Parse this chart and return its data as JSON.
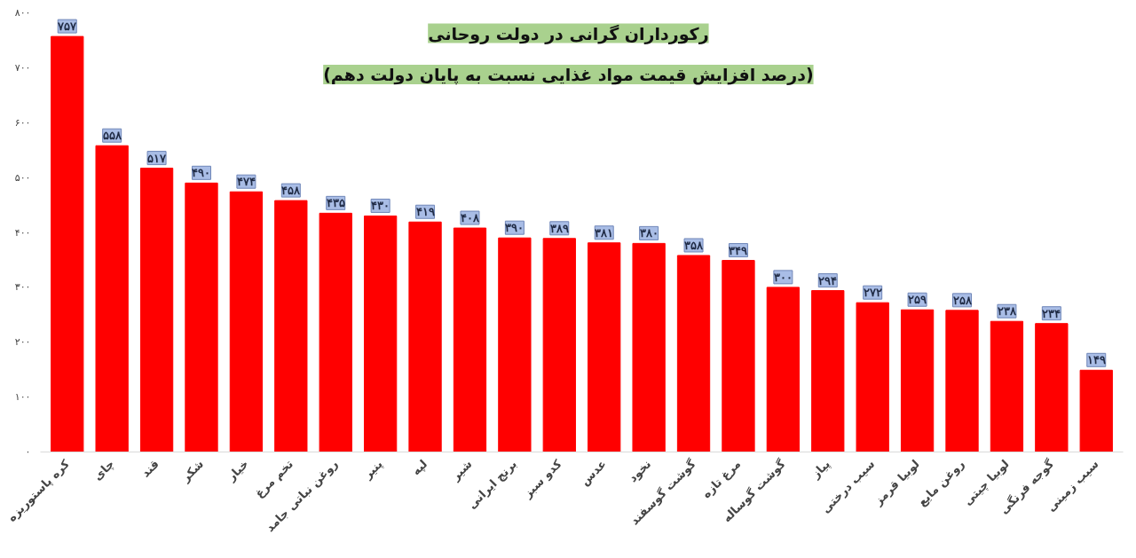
{
  "chart_data": {
    "type": "bar",
    "title": "رکورداران گرانی در دولت روحانی",
    "subtitle": "(درصد افزایش قیمت مواد غذایی نسبت به پایان دولت دهم)",
    "categories": [
      "کره پاستوریزه",
      "چای",
      "قند",
      "شکر",
      "خیار",
      "تخم مرغ",
      "روغن نباتی جامد",
      "پنیر",
      "لپه",
      "شیر",
      "برنج ایرانی",
      "کدو سبز",
      "عدس",
      "نخود",
      "گوشت گوسفند",
      "مرغ تازه",
      "گوشت گوساله",
      "پیاز",
      "سیب درختی",
      "لوبیا قرمز",
      "روغن مایع",
      "لوبیا چیتی",
      "گوجه فرنگی",
      "سیب زمینی"
    ],
    "values": [
      757,
      558,
      517,
      490,
      474,
      458,
      435,
      430,
      419,
      408,
      390,
      389,
      381,
      380,
      358,
      349,
      300,
      294,
      272,
      259,
      258,
      238,
      234,
      149
    ],
    "value_labels": [
      "۷۵۷",
      "۵۵۸",
      "۵۱۷",
      "۴۹۰",
      "۴۷۴",
      "۴۵۸",
      "۴۳۵",
      "۴۳۰",
      "۴۱۹",
      "۴۰۸",
      "۳۹۰",
      "۳۸۹",
      "۳۸۱",
      "۳۸۰",
      "۳۵۸",
      "۳۴۹",
      "۳۰۰",
      "۲۹۴",
      "۲۷۲",
      "۲۵۹",
      "۲۵۸",
      "۲۳۸",
      "۲۳۴",
      "۱۴۹"
    ],
    "color": "#ff0000",
    "ylim": [
      0,
      800
    ],
    "yticks": [
      {
        "value": 0,
        "label": "۰"
      },
      {
        "value": 100,
        "label": "۱۰۰"
      },
      {
        "value": 200,
        "label": "۲۰۰"
      },
      {
        "value": 300,
        "label": "۳۰۰"
      },
      {
        "value": 400,
        "label": "۴۰۰"
      },
      {
        "value": 500,
        "label": "۵۰۰"
      },
      {
        "value": 600,
        "label": "۶۰۰"
      },
      {
        "value": 700,
        "label": "۷۰۰"
      },
      {
        "value": 800,
        "label": "۸۰۰"
      }
    ],
    "grid": false
  }
}
